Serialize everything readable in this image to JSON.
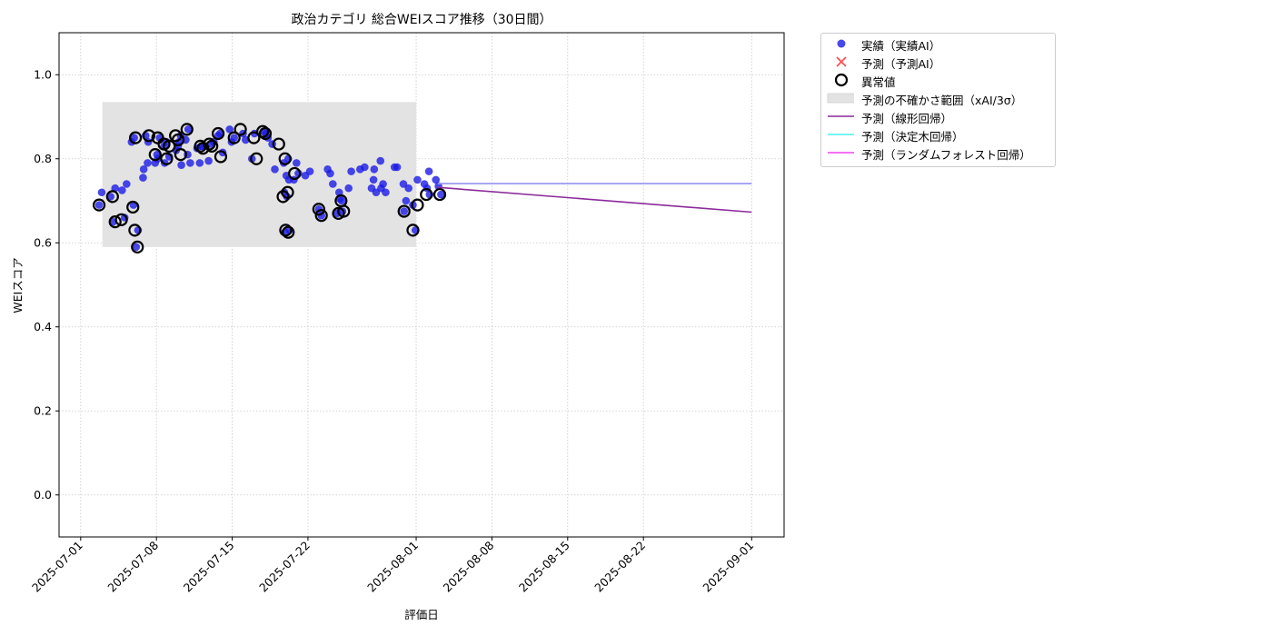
{
  "chart_data": {
    "type": "scatter",
    "title": "政治カテゴリ 総合WEIスコア推移（30日間）",
    "xlabel": "評価日",
    "ylabel": "WEIスコア",
    "xlim": [
      "2025-06-29",
      "2025-09-04"
    ],
    "ylim": [
      -0.1,
      1.1
    ],
    "x_ticks": [
      "2025-07-01",
      "2025-07-08",
      "2025-07-15",
      "2025-07-22",
      "2025-08-01",
      "2025-08-08",
      "2025-08-15",
      "2025-08-22",
      "2025-09-01"
    ],
    "y_ticks": [
      "0.0",
      "0.2",
      "0.4",
      "0.6",
      "0.8",
      "1.0"
    ],
    "grid": true,
    "legend_position": "outside-top-right",
    "colors": {
      "actual": "#1a1ae6",
      "predicted_ai": "#ff2a2a",
      "anomaly": "#000000",
      "uncertainty": "#e3e3e3",
      "linear": "#8b2a9a",
      "tree": "#4af0f0",
      "forest": "#f040f0"
    },
    "legend": [
      {
        "key": "actual",
        "label": "実績（実績AI）"
      },
      {
        "key": "predicted_ai",
        "label": "予測（予測AI）"
      },
      {
        "key": "anomaly",
        "label": "異常値"
      },
      {
        "key": "uncertainty",
        "label": "予測の不確かさ範囲（xAI/3σ）"
      },
      {
        "key": "linear",
        "label": "予測（線形回帰）"
      },
      {
        "key": "tree",
        "label": "予測（決定木回帰）"
      },
      {
        "key": "forest",
        "label": "予測（ランダムフォレスト回帰）"
      }
    ],
    "uncertainty_band": {
      "x": [
        "2025-07-03",
        "2025-08-01"
      ],
      "y": [
        0.59,
        0.935
      ]
    },
    "series": [
      {
        "key": "actual",
        "points": [
          [
            "2025-07-03",
            0.69
          ],
          [
            "2025-07-03",
            0.72
          ],
          [
            "2025-07-04",
            0.73
          ],
          [
            "2025-07-04",
            0.71
          ],
          [
            "2025-07-04",
            0.65
          ],
          [
            "2025-07-05",
            0.74
          ],
          [
            "2025-07-05",
            0.725
          ],
          [
            "2025-07-05",
            0.66
          ],
          [
            "2025-07-06",
            0.63
          ],
          [
            "2025-07-06",
            0.69
          ],
          [
            "2025-07-06",
            0.59
          ],
          [
            "2025-07-06",
            0.84
          ],
          [
            "2025-07-06",
            0.85
          ],
          [
            "2025-07-07",
            0.79
          ],
          [
            "2025-07-07",
            0.755
          ],
          [
            "2025-07-07",
            0.855
          ],
          [
            "2025-07-07",
            0.84
          ],
          [
            "2025-07-07",
            0.775
          ],
          [
            "2025-07-08",
            0.81
          ],
          [
            "2025-07-08",
            0.85
          ],
          [
            "2025-07-08",
            0.79
          ],
          [
            "2025-07-08",
            0.8
          ],
          [
            "2025-07-09",
            0.83
          ],
          [
            "2025-07-09",
            0.84
          ],
          [
            "2025-07-09",
            0.805
          ],
          [
            "2025-07-09",
            0.79
          ],
          [
            "2025-07-10",
            0.83
          ],
          [
            "2025-07-10",
            0.855
          ],
          [
            "2025-07-10",
            0.82
          ],
          [
            "2025-07-10",
            0.84
          ],
          [
            "2025-07-10",
            0.785
          ],
          [
            "2025-07-11",
            0.81
          ],
          [
            "2025-07-11",
            0.79
          ],
          [
            "2025-07-11",
            0.845
          ],
          [
            "2025-07-11",
            0.87
          ],
          [
            "2025-07-12",
            0.83
          ],
          [
            "2025-07-12",
            0.825
          ],
          [
            "2025-07-12",
            0.79
          ],
          [
            "2025-07-12",
            0.83
          ],
          [
            "2025-07-13",
            0.795
          ],
          [
            "2025-07-13",
            0.835
          ],
          [
            "2025-07-13",
            0.84
          ],
          [
            "2025-07-14",
            0.86
          ],
          [
            "2025-07-14",
            0.815
          ],
          [
            "2025-07-14",
            0.855
          ],
          [
            "2025-07-15",
            0.84
          ],
          [
            "2025-07-15",
            0.85
          ],
          [
            "2025-07-15",
            0.87
          ],
          [
            "2025-07-16",
            0.86
          ],
          [
            "2025-07-16",
            0.845
          ],
          [
            "2025-07-17",
            0.8
          ],
          [
            "2025-07-17",
            0.86
          ],
          [
            "2025-07-18",
            0.85
          ],
          [
            "2025-07-18",
            0.865
          ],
          [
            "2025-07-18",
            0.86
          ],
          [
            "2025-07-19",
            0.835
          ],
          [
            "2025-07-19",
            0.775
          ],
          [
            "2025-07-20",
            0.8
          ],
          [
            "2025-07-20",
            0.79
          ],
          [
            "2025-07-20",
            0.76
          ],
          [
            "2025-07-20",
            0.75
          ],
          [
            "2025-07-20",
            0.72
          ],
          [
            "2025-07-20",
            0.71
          ],
          [
            "2025-07-20",
            0.63
          ],
          [
            "2025-07-20",
            0.625
          ],
          [
            "2025-07-21",
            0.765
          ],
          [
            "2025-07-21",
            0.75
          ],
          [
            "2025-07-21",
            0.79
          ],
          [
            "2025-07-22",
            0.77
          ],
          [
            "2025-07-22",
            0.76
          ],
          [
            "2025-07-23",
            0.68
          ],
          [
            "2025-07-23",
            0.665
          ],
          [
            "2025-07-24",
            0.775
          ],
          [
            "2025-07-24",
            0.765
          ],
          [
            "2025-07-24",
            0.74
          ],
          [
            "2025-07-25",
            0.72
          ],
          [
            "2025-07-25",
            0.7
          ],
          [
            "2025-07-25",
            0.67
          ],
          [
            "2025-07-25",
            0.705
          ],
          [
            "2025-07-25",
            0.675
          ],
          [
            "2025-07-26",
            0.73
          ],
          [
            "2025-07-26",
            0.77
          ],
          [
            "2025-07-27",
            0.78
          ],
          [
            "2025-07-27",
            0.775
          ],
          [
            "2025-07-28",
            0.75
          ],
          [
            "2025-07-28",
            0.72
          ],
          [
            "2025-07-28",
            0.73
          ],
          [
            "2025-07-28",
            0.775
          ],
          [
            "2025-07-29",
            0.795
          ],
          [
            "2025-07-29",
            0.74
          ],
          [
            "2025-07-29",
            0.72
          ],
          [
            "2025-07-29",
            0.73
          ],
          [
            "2025-07-30",
            0.78
          ],
          [
            "2025-07-30",
            0.78
          ],
          [
            "2025-07-31",
            0.74
          ],
          [
            "2025-07-31",
            0.7
          ],
          [
            "2025-07-31",
            0.73
          ],
          [
            "2025-07-31",
            0.675
          ],
          [
            "2025-08-01",
            0.75
          ],
          [
            "2025-08-01",
            0.69
          ],
          [
            "2025-08-01",
            0.63
          ],
          [
            "2025-08-02",
            0.77
          ],
          [
            "2025-08-02",
            0.74
          ],
          [
            "2025-08-02",
            0.73
          ],
          [
            "2025-08-02",
            0.715
          ],
          [
            "2025-08-03",
            0.75
          ],
          [
            "2025-08-03",
            0.735
          ],
          [
            "2025-08-03",
            0.715
          ]
        ]
      },
      {
        "key": "anomaly",
        "points": [
          [
            "2025-07-03",
            0.69
          ],
          [
            "2025-07-04",
            0.71
          ],
          [
            "2025-07-04",
            0.65
          ],
          [
            "2025-07-05",
            0.655
          ],
          [
            "2025-07-06",
            0.63
          ],
          [
            "2025-07-06",
            0.59
          ],
          [
            "2025-07-06",
            0.685
          ],
          [
            "2025-07-06",
            0.85
          ],
          [
            "2025-07-07",
            0.855
          ],
          [
            "2025-07-08",
            0.81
          ],
          [
            "2025-07-08",
            0.85
          ],
          [
            "2025-07-09",
            0.835
          ],
          [
            "2025-07-09",
            0.8
          ],
          [
            "2025-07-09",
            0.83
          ],
          [
            "2025-07-10",
            0.855
          ],
          [
            "2025-07-10",
            0.845
          ],
          [
            "2025-07-10",
            0.81
          ],
          [
            "2025-07-11",
            0.87
          ],
          [
            "2025-07-12",
            0.83
          ],
          [
            "2025-07-12",
            0.825
          ],
          [
            "2025-07-13",
            0.835
          ],
          [
            "2025-07-13",
            0.83
          ],
          [
            "2025-07-14",
            0.86
          ],
          [
            "2025-07-14",
            0.805
          ],
          [
            "2025-07-15",
            0.85
          ],
          [
            "2025-07-16",
            0.87
          ],
          [
            "2025-07-17",
            0.85
          ],
          [
            "2025-07-17",
            0.8
          ],
          [
            "2025-07-18",
            0.865
          ],
          [
            "2025-07-18",
            0.86
          ],
          [
            "2025-07-19",
            0.835
          ],
          [
            "2025-07-20",
            0.8
          ],
          [
            "2025-07-20",
            0.72
          ],
          [
            "2025-07-20",
            0.71
          ],
          [
            "2025-07-20",
            0.63
          ],
          [
            "2025-07-20",
            0.625
          ],
          [
            "2025-07-21",
            0.765
          ],
          [
            "2025-07-23",
            0.68
          ],
          [
            "2025-07-23",
            0.665
          ],
          [
            "2025-07-25",
            0.67
          ],
          [
            "2025-07-25",
            0.7
          ],
          [
            "2025-07-25",
            0.675
          ],
          [
            "2025-07-31",
            0.675
          ],
          [
            "2025-08-01",
            0.69
          ],
          [
            "2025-08-01",
            0.63
          ],
          [
            "2025-08-02",
            0.715
          ],
          [
            "2025-08-03",
            0.715
          ]
        ]
      }
    ],
    "lines": [
      {
        "key": "forest",
        "x": [
          "2025-08-03",
          "2025-09-01"
        ],
        "y": [
          0.741,
          0.741
        ]
      },
      {
        "key": "tree",
        "x": [
          "2025-08-03",
          "2025-09-01"
        ],
        "y": [
          0.741,
          0.741
        ],
        "opacity": 0.55
      },
      {
        "key": "linear",
        "x": [
          "2025-08-03",
          "2025-09-01"
        ],
        "y": [
          0.732,
          0.673
        ]
      }
    ]
  }
}
